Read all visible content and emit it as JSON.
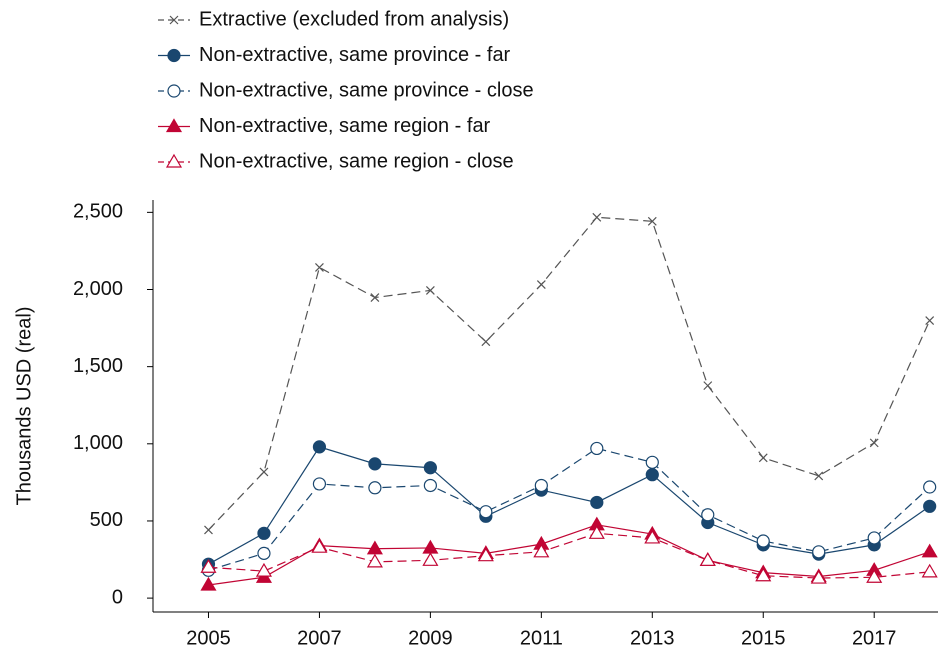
{
  "chart_data": {
    "type": "line",
    "y_label": "Thousands USD (real)",
    "xlim": [
      2004,
      2018.15
    ],
    "xticks": [
      2005,
      2007,
      2009,
      2011,
      2013,
      2015,
      2017
    ],
    "ylim": [
      -90,
      2580
    ],
    "yticks": [
      0,
      500,
      {
        "value": 1000,
        "label": "1,000"
      },
      {
        "value": 1500,
        "label": "1,500"
      },
      {
        "value": 2000,
        "label": "2,000"
      },
      {
        "value": 2500,
        "label": "2,500"
      }
    ],
    "x": [
      2005,
      2006,
      2007,
      2008,
      2009,
      2010,
      2011,
      2012,
      2013,
      2014,
      2015,
      2016,
      2017,
      2018
    ],
    "series": [
      {
        "name": "Extractive (excluded from analysis)",
        "color": "#555555",
        "marker": "x",
        "filled": false,
        "dashed": true,
        "values": [
          442,
          818,
          2143,
          1948,
          1994,
          1662,
          2032,
          2468,
          2442,
          1377,
          909,
          792,
          1006,
          1799
        ]
      },
      {
        "name": "Non-extractive, same province - far",
        "color": "#1a476f",
        "marker": "circle",
        "filled": true,
        "dashed": false,
        "values": [
          220,
          420,
          980,
          870,
          845,
          530,
          700,
          620,
          800,
          490,
          345,
          285,
          345,
          595
        ]
      },
      {
        "name": "Non-extractive, same province - close",
        "color": "#1a476f",
        "marker": "circle",
        "filled": false,
        "dashed": true,
        "values": [
          180,
          290,
          740,
          715,
          730,
          560,
          730,
          970,
          880,
          540,
          370,
          300,
          390,
          720
        ]
      },
      {
        "name": "Non-extractive, same region - far",
        "color": "#c10534",
        "marker": "triangle",
        "filled": true,
        "dashed": false,
        "values": [
          85,
          135,
          340,
          320,
          325,
          290,
          350,
          475,
          415,
          245,
          165,
          140,
          180,
          300
        ]
      },
      {
        "name": "Non-extractive, same region - close",
        "color": "#c10534",
        "marker": "triangle",
        "filled": false,
        "dashed": true,
        "values": [
          200,
          175,
          330,
          235,
          245,
          275,
          300,
          420,
          390,
          245,
          145,
          130,
          135,
          170
        ]
      }
    ]
  }
}
